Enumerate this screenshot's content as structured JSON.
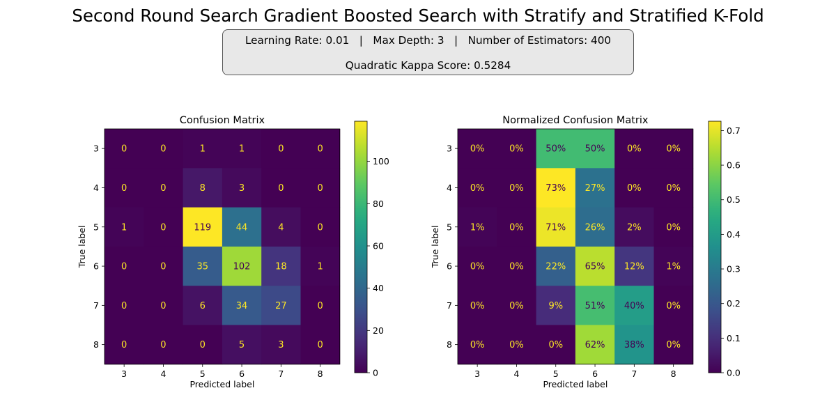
{
  "title": "Second Round Search Gradient Boosted Search with Stratify and Stratified K-Fold",
  "info": {
    "learning_rate": "Learning Rate: 0.01",
    "max_depth": "Max Depth: 3",
    "n_estimators": "Number of Estimators: 400",
    "separator": "|",
    "kappa": "Quadratic Kappa Score: 0.5284"
  },
  "chart_data": [
    {
      "type": "heatmap",
      "title": "Confusion Matrix",
      "xlabel": "Predicted label",
      "ylabel": "True label",
      "x_categories": [
        "3",
        "4",
        "5",
        "6",
        "7",
        "8"
      ],
      "y_categories": [
        "3",
        "4",
        "5",
        "6",
        "7",
        "8"
      ],
      "values": [
        [
          0,
          0,
          1,
          1,
          0,
          0
        ],
        [
          0,
          0,
          8,
          3,
          0,
          0
        ],
        [
          1,
          0,
          119,
          44,
          4,
          0
        ],
        [
          0,
          0,
          35,
          102,
          18,
          1
        ],
        [
          0,
          0,
          6,
          34,
          27,
          0
        ],
        [
          0,
          0,
          0,
          5,
          3,
          0
        ]
      ],
      "cell_labels": [
        [
          "0",
          "0",
          "1",
          "1",
          "0",
          "0"
        ],
        [
          "0",
          "0",
          "8",
          "3",
          "0",
          "0"
        ],
        [
          "1",
          "0",
          "119",
          "44",
          "4",
          "0"
        ],
        [
          "0",
          "0",
          "35",
          "102",
          "18",
          "1"
        ],
        [
          "0",
          "0",
          "6",
          "34",
          "27",
          "0"
        ],
        [
          "0",
          "0",
          "0",
          "5",
          "3",
          "0"
        ]
      ],
      "colormap": "viridis",
      "vmin": 0,
      "vmax": 119,
      "colorbar_ticks": [
        0,
        20,
        40,
        60,
        80,
        100
      ],
      "colorbar_tick_labels": [
        "0",
        "20",
        "40",
        "60",
        "80",
        "100"
      ]
    },
    {
      "type": "heatmap",
      "title": "Normalized Confusion Matrix",
      "xlabel": "Predicted label",
      "ylabel": "True label",
      "x_categories": [
        "3",
        "4",
        "5",
        "6",
        "7",
        "8"
      ],
      "y_categories": [
        "3",
        "4",
        "5",
        "6",
        "7",
        "8"
      ],
      "values": [
        [
          0,
          0,
          0.5,
          0.5,
          0,
          0
        ],
        [
          0,
          0,
          0.727,
          0.273,
          0,
          0
        ],
        [
          0.006,
          0,
          0.708,
          0.262,
          0.024,
          0
        ],
        [
          0,
          0,
          0.224,
          0.654,
          0.115,
          0.006
        ],
        [
          0,
          0,
          0.09,
          0.507,
          0.403,
          0
        ],
        [
          0,
          0,
          0,
          0.625,
          0.375,
          0
        ]
      ],
      "cell_labels": [
        [
          "0%",
          "0%",
          "50%",
          "50%",
          "0%",
          "0%"
        ],
        [
          "0%",
          "0%",
          "73%",
          "27%",
          "0%",
          "0%"
        ],
        [
          "1%",
          "0%",
          "71%",
          "26%",
          "2%",
          "0%"
        ],
        [
          "0%",
          "0%",
          "22%",
          "65%",
          "12%",
          "1%"
        ],
        [
          "0%",
          "0%",
          "9%",
          "51%",
          "40%",
          "0%"
        ],
        [
          "0%",
          "0%",
          "0%",
          "62%",
          "38%",
          "0%"
        ]
      ],
      "colormap": "viridis",
      "vmin": 0,
      "vmax": 0.727,
      "colorbar_ticks": [
        0,
        0.1,
        0.2,
        0.3,
        0.4,
        0.5,
        0.6,
        0.7
      ],
      "colorbar_tick_labels": [
        "0.0",
        "0.1",
        "0.2",
        "0.3",
        "0.4",
        "0.5",
        "0.6",
        "0.7"
      ]
    }
  ]
}
